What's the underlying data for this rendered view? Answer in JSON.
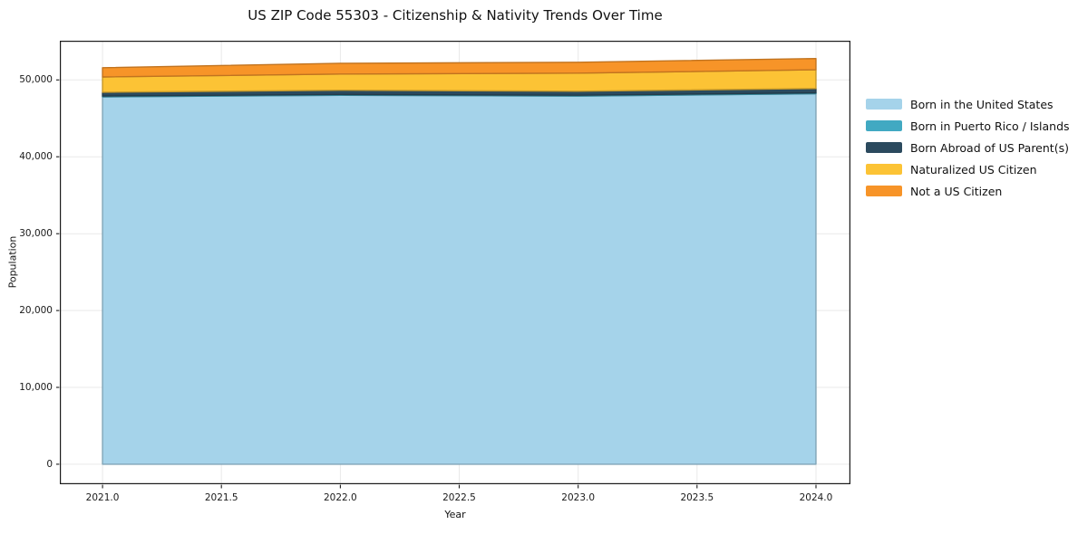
{
  "chart_data": {
    "type": "area",
    "stacked": true,
    "title": "US ZIP Code 55303 - Citizenship & Nativity Trends Over Time",
    "xlabel": "Year",
    "ylabel": "Population",
    "x": [
      2021,
      2022,
      2023,
      2024
    ],
    "series": [
      {
        "name": "Born in the United States",
        "color": "#a5d3ea",
        "values": [
          47800,
          48000,
          47900,
          48200
        ]
      },
      {
        "name": "Born in Puerto Rico / Islands",
        "color": "#41a9c2",
        "values": [
          110,
          110,
          110,
          120
        ]
      },
      {
        "name": "Born Abroad of US Parent(s)",
        "color": "#2b4a5e",
        "values": [
          480,
          550,
          520,
          560
        ]
      },
      {
        "name": "Naturalized US Citizen",
        "color": "#fcc335",
        "values": [
          2000,
          2100,
          2350,
          2450
        ]
      },
      {
        "name": "Not a US Citizen",
        "color": "#f79428",
        "values": [
          1200,
          1400,
          1420,
          1450
        ]
      }
    ],
    "x_ticks": [
      2021.0,
      2021.5,
      2022.0,
      2022.5,
      2023.0,
      2023.5,
      2024.0
    ],
    "x_tick_labels": [
      "2021.0",
      "2021.5",
      "2022.0",
      "2022.5",
      "2023.0",
      "2023.5",
      "2024.0"
    ],
    "y_ticks": [
      0,
      10000,
      20000,
      30000,
      40000,
      50000
    ],
    "y_tick_labels": [
      "0",
      "10,000",
      "20,000",
      "30,000",
      "40,000",
      "50,000"
    ],
    "x_range": [
      2020.8206,
      2024.145
    ],
    "y_range": [
      -2600,
      55100
    ],
    "grid": true,
    "grid_color": "#e9e9e9",
    "spine_color": "#1a1a1a",
    "legend_position": "right outside"
  }
}
